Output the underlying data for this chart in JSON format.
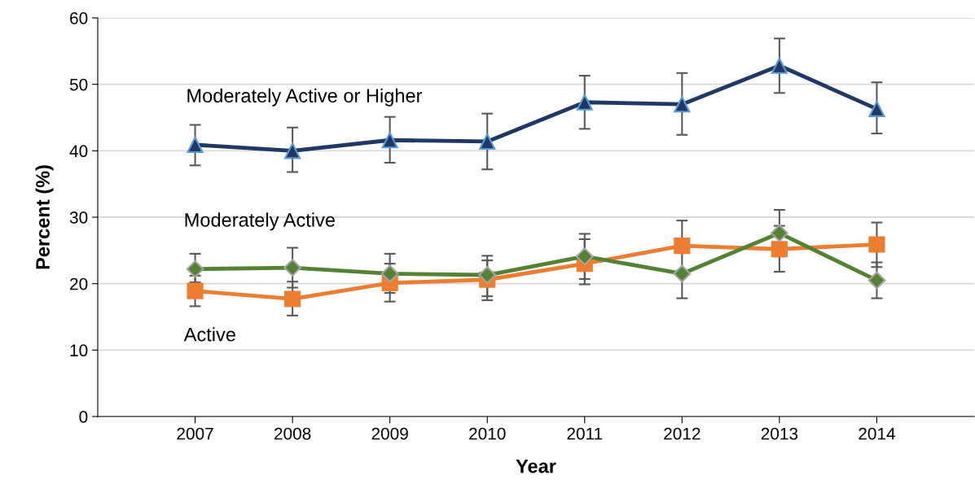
{
  "chart_data": {
    "type": "line",
    "xlabel": "Year",
    "ylabel": "Percent (%)",
    "categories": [
      "2007",
      "2008",
      "2009",
      "2010",
      "2011",
      "2012",
      "2013",
      "2014"
    ],
    "ylim": [
      0,
      60
    ],
    "yticks": [
      0,
      10,
      20,
      30,
      40,
      50,
      60
    ],
    "grid": "y",
    "legend": false,
    "series": [
      {
        "name": "Moderately Active or Higher",
        "color": "#1f3864",
        "marker": "triangle",
        "values": [
          40.9,
          40.0,
          41.6,
          41.4,
          47.3,
          47.0,
          52.8,
          46.3
        ],
        "errors": [
          [
            37.8,
            43.9
          ],
          [
            36.8,
            43.5
          ],
          [
            38.2,
            45.1
          ],
          [
            37.2,
            45.6
          ],
          [
            43.3,
            51.3
          ],
          [
            42.4,
            51.7
          ],
          [
            48.7,
            56.9
          ],
          [
            42.6,
            50.3
          ]
        ]
      },
      {
        "name": "Moderately Active",
        "color": "#548235",
        "marker": "diamond",
        "values": [
          22.2,
          22.4,
          21.5,
          21.3,
          24.1,
          21.5,
          27.6,
          20.5
        ],
        "errors": [
          [
            20.2,
            24.5
          ],
          [
            19.4,
            25.4
          ],
          [
            18.6,
            24.5
          ],
          [
            18.1,
            24.2
          ],
          [
            20.7,
            27.5
          ],
          [
            17.8,
            21.5
          ],
          [
            24.1,
            31.1
          ],
          [
            17.8,
            23.2
          ]
        ]
      },
      {
        "name": "Active",
        "color": "#ed7d31",
        "marker": "square",
        "values": [
          18.9,
          17.7,
          20.1,
          20.6,
          23.0,
          25.7,
          25.2,
          25.9
        ],
        "errors": [
          [
            16.6,
            21.2
          ],
          [
            15.2,
            20.3
          ],
          [
            17.3,
            23.0
          ],
          [
            17.5,
            23.5
          ],
          [
            19.9,
            26.7
          ],
          [
            22.0,
            29.5
          ],
          [
            21.8,
            28.7
          ],
          [
            22.5,
            29.2
          ]
        ]
      }
    ]
  }
}
